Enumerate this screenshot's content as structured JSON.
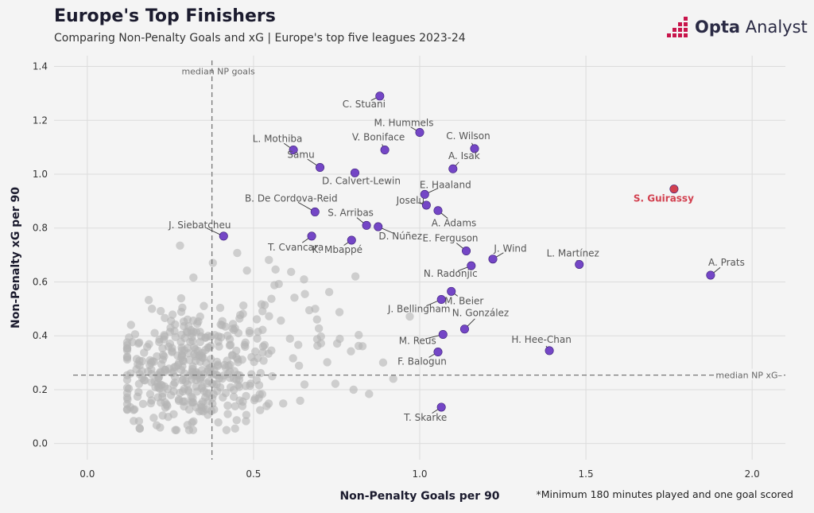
{
  "header": {
    "title": "Europe's Top Finishers",
    "subtitle": "Comparing Non-Penalty Goals and xG | Europe's top five leagues 2023-24"
  },
  "brand": {
    "bold": "Opta",
    "rest": " Analyst",
    "color": "#c8144b"
  },
  "footnote": "*Minimum 180 minutes played and one goal scored",
  "chart_data": {
    "type": "scatter",
    "xlabel": "Non-Penalty Goals per 90",
    "ylabel": "Non-Penalty xG per 90",
    "xlim": [
      -0.1,
      2.1
    ],
    "ylim": [
      -0.06,
      1.44
    ],
    "xticks": [
      "0.0",
      "0.5",
      "1.0",
      "1.5",
      "2.0"
    ],
    "yticks": [
      "0.0",
      "0.2",
      "0.4",
      "0.6",
      "0.8",
      "1.0",
      "1.2",
      "1.4"
    ],
    "grid": true,
    "colors": {
      "highlight": "#7446c6",
      "featured": "#d2404f",
      "background": "#b4b4b4",
      "label": "#555555"
    },
    "reference_lines": [
      {
        "axis": "x",
        "value": 0.375,
        "label": "median NP goals"
      },
      {
        "axis": "y",
        "value": 0.254,
        "label": "median NP xG"
      }
    ],
    "highlighted": [
      {
        "name": "C. Stuani",
        "x": 0.88,
        "y": 1.29
      },
      {
        "name": "M. Hummels",
        "x": 1.0,
        "y": 1.155
      },
      {
        "name": "C. Wilson",
        "x": 1.165,
        "y": 1.095
      },
      {
        "name": "L. Mothiba",
        "x": 0.62,
        "y": 1.09
      },
      {
        "name": "V. Boniface",
        "x": 0.895,
        "y": 1.09
      },
      {
        "name": "Samu",
        "x": 0.7,
        "y": 1.025
      },
      {
        "name": "A. Isak",
        "x": 1.1,
        "y": 1.02
      },
      {
        "name": "D. Calvert-Lewin",
        "x": 0.805,
        "y": 1.005
      },
      {
        "name": "E. Haaland",
        "x": 1.015,
        "y": 0.925
      },
      {
        "name": "Joselu",
        "x": 1.02,
        "y": 0.885
      },
      {
        "name": "B. De Cordova-Reid",
        "x": 0.685,
        "y": 0.86
      },
      {
        "name": "A. Adams",
        "x": 1.055,
        "y": 0.865
      },
      {
        "name": "S. Arribas",
        "x": 0.84,
        "y": 0.81
      },
      {
        "name": "D. Núñez",
        "x": 0.875,
        "y": 0.805
      },
      {
        "name": "J. Siebatcheu",
        "x": 0.41,
        "y": 0.77
      },
      {
        "name": "T. Cvancara",
        "x": 0.675,
        "y": 0.77
      },
      {
        "name": "K. Mbappé",
        "x": 0.795,
        "y": 0.755
      },
      {
        "name": "E. Ferguson",
        "x": 1.14,
        "y": 0.715
      },
      {
        "name": "J. Wind",
        "x": 1.22,
        "y": 0.685
      },
      {
        "name": "L. Martínez",
        "x": 1.48,
        "y": 0.665
      },
      {
        "name": "N. Radonjic",
        "x": 1.155,
        "y": 0.66
      },
      {
        "name": "A. Prats",
        "x": 1.875,
        "y": 0.625
      },
      {
        "name": "M. Beier",
        "x": 1.095,
        "y": 0.565
      },
      {
        "name": "J. Bellingham",
        "x": 1.065,
        "y": 0.535
      },
      {
        "name": "N. González",
        "x": 1.135,
        "y": 0.425
      },
      {
        "name": "M. Reus",
        "x": 1.07,
        "y": 0.405
      },
      {
        "name": "H. Hee-Chan",
        "x": 1.39,
        "y": 0.345
      },
      {
        "name": "F. Balogun",
        "x": 1.055,
        "y": 0.34
      },
      {
        "name": "T. Skarke",
        "x": 1.065,
        "y": 0.135
      }
    ],
    "featured": [
      {
        "name": "S. Guirassy",
        "x": 1.765,
        "y": 0.945
      }
    ]
  }
}
